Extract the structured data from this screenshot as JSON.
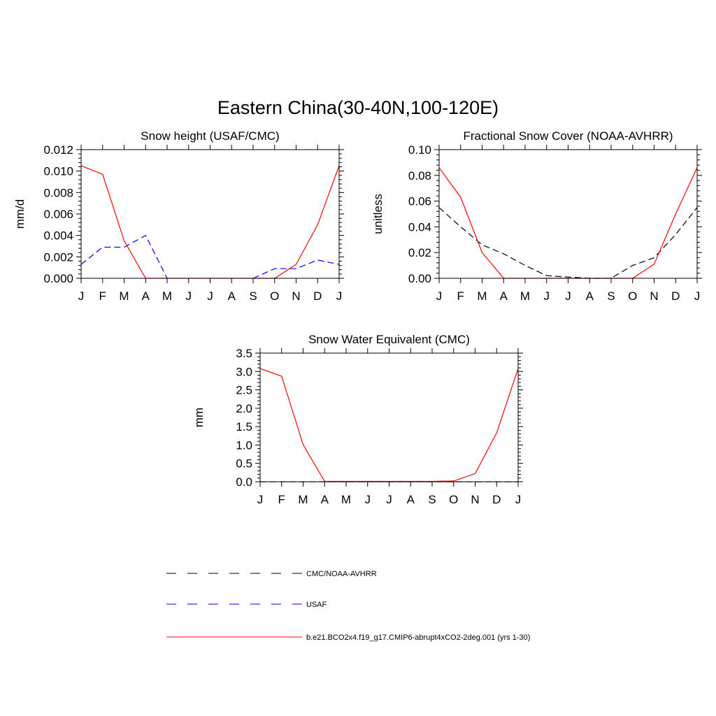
{
  "main_title": "Eastern China(30-40N,100-120E)",
  "colors": {
    "model": "#ff0000",
    "usaf": "#0000ff",
    "obs": "#000000"
  },
  "legend": [
    {
      "label": "CMC/NOAA-AVHRR",
      "color": "#000000",
      "style": "dashed"
    },
    {
      "label": "USAF",
      "color": "#0000ff",
      "style": "dashed"
    },
    {
      "label": "b.e21.BCO2x4.f19_g17.CMIP6-abrupt4xCO2-2deg.001 (yrs 1-30)",
      "color": "#ff0000",
      "style": "solid"
    }
  ],
  "chart_data": [
    {
      "type": "line",
      "title": "Snow height (USAF/CMC)",
      "xlabel": "",
      "ylabel": "mm/d",
      "categories": [
        "J",
        "F",
        "M",
        "A",
        "M",
        "J",
        "J",
        "A",
        "S",
        "O",
        "N",
        "D",
        "J"
      ],
      "ylim": [
        0,
        0.012
      ],
      "yticks": [
        "0.000",
        "0.002",
        "0.004",
        "0.006",
        "0.008",
        "0.010",
        "0.012"
      ],
      "series": [
        {
          "color": "#0000ff",
          "dash": true,
          "values": [
            0.0013,
            0.0029,
            0.0029,
            0.004,
            0.0,
            null,
            null,
            null,
            0.0,
            0.0009,
            0.0009,
            0.0017,
            0.0013
          ]
        },
        {
          "color": "#ff0000",
          "dash": false,
          "values": [
            0.0105,
            0.0097,
            0.0035,
            0.0,
            0.0,
            0.0,
            0.0,
            0.0,
            0.0,
            0.0,
            0.0013,
            0.005,
            0.0105
          ]
        }
      ]
    },
    {
      "type": "line",
      "title": "Fractional Snow Cover (NOAA-AVHRR)",
      "xlabel": "",
      "ylabel": "unitless",
      "categories": [
        "J",
        "F",
        "M",
        "A",
        "M",
        "J",
        "J",
        "A",
        "S",
        "O",
        "N",
        "D",
        "J"
      ],
      "ylim": [
        0,
        0.1
      ],
      "yticks": [
        "0.00",
        "0.02",
        "0.04",
        "0.06",
        "0.08",
        "0.10"
      ],
      "series": [
        {
          "color": "#000000",
          "dash": true,
          "values": [
            0.055,
            0.04,
            0.026,
            0.019,
            0.01,
            0.002,
            0.001,
            0.0,
            0.0,
            0.01,
            0.016,
            0.034,
            0.055
          ]
        },
        {
          "color": "#ff0000",
          "dash": false,
          "values": [
            0.086,
            0.063,
            0.02,
            0.0,
            0.0,
            0.0,
            0.0,
            0.0,
            0.0,
            0.0,
            0.011,
            0.05,
            0.086
          ]
        }
      ]
    },
    {
      "type": "line",
      "title": "Snow Water Equivalent (CMC)",
      "xlabel": "",
      "ylabel": "mm",
      "categories": [
        "J",
        "F",
        "M",
        "A",
        "M",
        "J",
        "J",
        "A",
        "S",
        "O",
        "N",
        "D",
        "J"
      ],
      "ylim": [
        0,
        3.5
      ],
      "yticks": [
        "0.0",
        "0.5",
        "1.0",
        "1.5",
        "2.0",
        "2.5",
        "3.0",
        "3.5"
      ],
      "series": [
        {
          "color": "#000000",
          "dash": true,
          "values": [
            0,
            0,
            0,
            0,
            0,
            0,
            0,
            0,
            0,
            0,
            0,
            0,
            0
          ]
        },
        {
          "color": "#ff0000",
          "dash": false,
          "values": [
            3.08,
            2.87,
            1.01,
            0.01,
            0.01,
            0.01,
            0.01,
            0.01,
            0.01,
            0.02,
            0.22,
            1.33,
            3.08
          ]
        }
      ]
    }
  ]
}
